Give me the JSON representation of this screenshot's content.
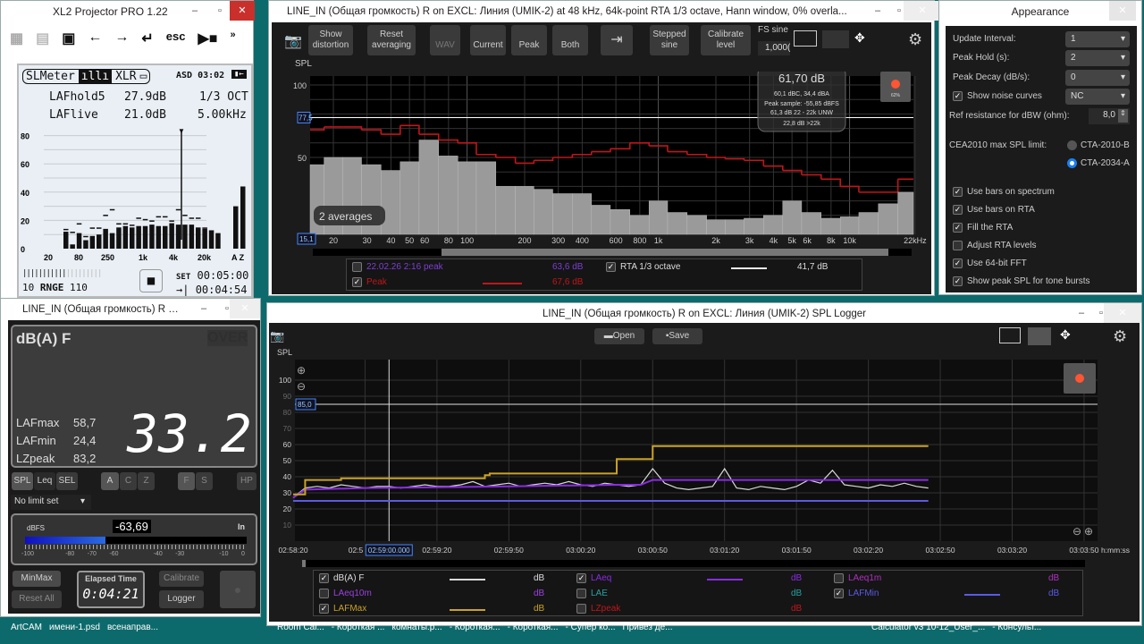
{
  "xl2": {
    "title": "XL2 Projector PRO  1.22",
    "toolbar": [
      "list-icon",
      "chart-icon",
      "sd-card-icon",
      "arrow-left-icon",
      "arrow-right-icon",
      "enter-icon",
      "esc",
      "play-stop-icon"
    ],
    "esc": "esc",
    "more": "»",
    "tabs": [
      "SLMeter",
      "XLR"
    ],
    "status": "ASD 03:02",
    "hold_label": "LAFhold5",
    "hold_value": "27.9dB",
    "band": "1/3 OCT",
    "live_label": "LAFlive",
    "live_value": "21.0dB",
    "cursor_freq": "5.00kHz",
    "y_ticks": [
      "80",
      "60",
      "40",
      "20",
      "0"
    ],
    "x_ticks": [
      "20",
      "80",
      "250",
      "1k",
      "4k",
      "20k",
      "A Z"
    ],
    "live_bars": [
      12,
      3,
      11,
      6,
      9,
      10,
      14,
      11,
      15,
      16,
      15,
      16,
      16,
      17,
      16,
      16,
      18,
      17,
      17,
      17,
      15,
      14,
      13,
      11
    ],
    "hold_marks": [
      14,
      12,
      18,
      9,
      15,
      15,
      24,
      28,
      18,
      18,
      17,
      22,
      21,
      20,
      23,
      23,
      20,
      28,
      24,
      22,
      22,
      15,
      null,
      null
    ],
    "az_bars": [
      30,
      44
    ],
    "range_lo": "10",
    "range_label": "RNGE",
    "range_hi": "110",
    "set_label": "SET",
    "set_time": "00:05:00",
    "remaining_time": "00:04:54"
  },
  "rta": {
    "title": "LINE_IN (Общая громкость) R on EXCL: Линия (UMIK-2) at 48 kHz, 64k-point RTA 1/3 octave, Hann window, 0% overla...",
    "buttons": {
      "show_distortion": "Show distortion",
      "reset_averaging": "Reset averaging",
      "wav": "WAV",
      "current": "Current",
      "peak": "Peak",
      "both": "Both",
      "stepped_sine": "Stepped sine",
      "calibrate_level": "Calibrate level"
    },
    "fs_sine_label": "FS sine",
    "fs_sine_value": "1,000(",
    "y_label": "SPL",
    "cursor_level": "77,5",
    "cursor_freq": "15,1",
    "averages": "2 averages",
    "readout": {
      "main": "61,70 dB",
      "l1": "60,1 dBC, 34,4 dBA",
      "l2": "Peak sample: -55,85 dBFS",
      "l3": "61,3 dB 22 - 22k UNW",
      "l4": "22,8 dB >22k"
    },
    "rec_label": "62%",
    "legend": [
      {
        "checked": false,
        "name": "22.02.26 2:16 peak",
        "value": "63,6 dB",
        "color": "#7b3fd1"
      },
      {
        "checked": true,
        "name": "Peak",
        "value": "67,6 dB",
        "color": "#c0161a"
      },
      {
        "checked": true,
        "name": "RTA 1/3 octave",
        "value": "41,7 dB",
        "color": "#e8e8e8"
      }
    ]
  },
  "chart_data": [
    {
      "type": "bar",
      "title": "",
      "ylabel": "SPL",
      "xlabel": "",
      "x_scale": "log",
      "ylim": [
        0,
        105
      ],
      "xlim": [
        15.1,
        22000
      ],
      "y_ticks": [
        100,
        50
      ],
      "x_tick_labels": [
        "20",
        "30",
        "40",
        "50",
        "60",
        "80",
        "100",
        "200",
        "300",
        "400",
        "600",
        "800",
        "1k",
        "2k",
        "3k",
        "4k",
        "5k",
        "6k",
        "8k",
        "10k",
        "22kHz"
      ],
      "x_tick_values": [
        20,
        30,
        40,
        50,
        60,
        80,
        100,
        200,
        300,
        400,
        600,
        800,
        1000,
        2000,
        3000,
        4000,
        5000,
        6000,
        8000,
        10000,
        22000
      ],
      "categories": [
        16,
        20,
        25,
        31.5,
        40,
        50,
        63,
        80,
        100,
        125,
        160,
        200,
        250,
        315,
        400,
        500,
        630,
        800,
        1000,
        1250,
        1600,
        2000,
        2500,
        3150,
        4000,
        5000,
        6300,
        8000,
        10000,
        12500,
        16000,
        20000
      ],
      "series": [
        {
          "name": "RTA 1/3 octave",
          "color": "#9a9a9a",
          "values": [
            45,
            50,
            50,
            45,
            41,
            47,
            62,
            51,
            47,
            47,
            30,
            30,
            28,
            25,
            25,
            17,
            14,
            10,
            20,
            12,
            10,
            7,
            7,
            8,
            10,
            20,
            12,
            8,
            9,
            12,
            18,
            26
          ]
        },
        {
          "name": "Peak",
          "color": "#c0161a",
          "values": [
            69,
            71,
            71,
            69,
            66,
            72,
            66,
            62,
            60,
            52,
            50,
            46,
            48,
            50,
            52,
            54,
            56,
            60,
            58,
            54,
            52,
            50,
            49,
            48,
            44,
            41,
            38,
            35,
            30,
            26,
            26,
            35
          ]
        }
      ],
      "reference_line": 77.5
    },
    {
      "type": "line",
      "title": "",
      "ylabel": "SPL",
      "xlabel": "h:mm:ss",
      "ylim": [
        0,
        112
      ],
      "xlim": [
        "02:58:20",
        "03:03:55"
      ],
      "y_ticks": [
        100,
        90,
        85,
        80,
        70,
        60,
        50,
        40,
        30,
        20,
        10
      ],
      "x_tick_labels": [
        "02:58:20",
        "02:5",
        "02:59:20",
        "02:59:50",
        "03:00:20",
        "03:00:50",
        "03:01:20",
        "03:01:50",
        "03:02:20",
        "03:02:50",
        "03:03:20",
        "03:03:50"
      ],
      "cursor_time": "02:59:00.000",
      "reference_line": 85.0,
      "series": [
        {
          "name": "dB(A) F",
          "color": "#d8d8d8",
          "points": [
            [
              "02:58:20",
              27
            ],
            [
              "02:58:25",
              33
            ],
            [
              "02:58:30",
              34
            ],
            [
              "02:58:35",
              33
            ],
            [
              "02:58:40",
              35
            ],
            [
              "02:58:45",
              34
            ],
            [
              "02:58:50",
              33
            ],
            [
              "02:58:55",
              34
            ],
            [
              "02:59:00",
              34
            ],
            [
              "02:59:05",
              33
            ],
            [
              "02:59:10",
              34
            ],
            [
              "02:59:15",
              35
            ],
            [
              "02:59:20",
              34
            ],
            [
              "02:59:25",
              34
            ],
            [
              "02:59:30",
              35
            ],
            [
              "02:59:35",
              37
            ],
            [
              "02:59:40",
              34
            ],
            [
              "02:59:45",
              35
            ],
            [
              "02:59:50",
              36
            ],
            [
              "02:59:55",
              34
            ],
            [
              "03:00:00",
              35
            ],
            [
              "03:00:05",
              36
            ],
            [
              "03:00:10",
              35
            ],
            [
              "03:00:15",
              37
            ],
            [
              "03:00:20",
              35
            ],
            [
              "03:00:25",
              34
            ],
            [
              "03:00:30",
              36
            ],
            [
              "03:00:35",
              35
            ],
            [
              "03:00:40",
              34
            ],
            [
              "03:00:45",
              35
            ],
            [
              "03:00:50",
              45
            ],
            [
              "03:00:55",
              36
            ],
            [
              "03:01:00",
              33
            ],
            [
              "03:01:05",
              32
            ],
            [
              "03:01:10",
              33
            ],
            [
              "03:01:15",
              34
            ],
            [
              "03:01:20",
              45
            ],
            [
              "03:01:25",
              33
            ],
            [
              "03:01:30",
              32
            ],
            [
              "03:01:35",
              34
            ],
            [
              "03:01:40",
              33
            ],
            [
              "03:01:45",
              32
            ],
            [
              "03:01:50",
              34
            ],
            [
              "03:01:55",
              38
            ],
            [
              "03:02:00",
              36
            ],
            [
              "03:02:05",
              44
            ],
            [
              "03:02:10",
              35
            ],
            [
              "03:02:15",
              34
            ],
            [
              "03:02:20",
              33
            ],
            [
              "03:02:25",
              35
            ],
            [
              "03:02:30",
              34
            ],
            [
              "03:02:35",
              36
            ],
            [
              "03:02:40",
              34
            ],
            [
              "03:02:45",
              33
            ]
          ]
        },
        {
          "name": "LAeq",
          "color": "#8a2be2",
          "points": [
            [
              "02:58:20",
              27
            ],
            [
              "02:58:25",
              32
            ],
            [
              "02:58:50",
              33
            ],
            [
              "02:59:50",
              34
            ],
            [
              "03:00:35",
              35
            ],
            [
              "03:00:45",
              35
            ],
            [
              "03:00:50",
              38
            ],
            [
              "03:02:45",
              38
            ]
          ]
        },
        {
          "name": "LAFMax",
          "color": "#c9a227",
          "steps": [
            [
              "02:58:20",
              29
            ],
            [
              "02:58:25",
              38
            ],
            [
              "02:58:40",
              39
            ],
            [
              "02:59:40",
              41
            ],
            [
              "02:59:42",
              42
            ],
            [
              "03:00:35",
              51
            ],
            [
              "03:00:50",
              59
            ],
            [
              "03:02:45",
              59
            ]
          ]
        },
        {
          "name": "LAFMin",
          "color": "#5a5ae6",
          "steps": [
            [
              "02:58:20",
              25
            ],
            [
              "03:02:45",
              25
            ]
          ]
        }
      ]
    }
  ],
  "appearance": {
    "title": "Appearance",
    "update_interval_label": "Update Interval:",
    "update_interval": "1",
    "peak_hold_label": "Peak Hold (s):",
    "peak_hold": "2",
    "peak_decay_label": "Peak Decay (dB/s):",
    "peak_decay": "0",
    "noise_label": "Show noise curves",
    "noise_value": "NC",
    "ref_label": "Ref resistance for dBW (ohm):",
    "ref_value": "8,0",
    "cea_label": "CEA2010 max SPL limit:",
    "radio1": "CTA-2010-B",
    "radio2": "CTA-2034-A",
    "checks": [
      {
        "label": "Use bars on spectrum",
        "checked": true
      },
      {
        "label": "Use bars on RTA",
        "checked": true
      },
      {
        "label": "Fill the RTA",
        "checked": true
      },
      {
        "label": "Adjust RTA levels",
        "checked": false
      },
      {
        "label": "Use 64-bit FFT",
        "checked": true
      },
      {
        "label": "Show peak SPL for tone bursts",
        "checked": true
      }
    ]
  },
  "meter": {
    "title": "LINE_IN (Общая громкость) R on...",
    "weighting": "dB(A) F",
    "over": "OVER",
    "stats": [
      [
        "LAFmax",
        "58,7"
      ],
      [
        "LAFmin",
        "24,4"
      ],
      [
        "LZpeak",
        "83,2"
      ]
    ],
    "value": "33.2",
    "modes": [
      "SPL",
      "Leq",
      "SEL"
    ],
    "weights": [
      "A",
      "C",
      "Z"
    ],
    "times": [
      "F",
      "S"
    ],
    "hp": "HP",
    "limit": "No limit set",
    "dbfs_label": "dBFS",
    "dbfs_value": "-63,69",
    "input": "In",
    "dbfs_level": -63.69,
    "scale": [
      "-100",
      "-80",
      "-70",
      "-60",
      "-40",
      "-30",
      "-10",
      "0"
    ],
    "minmax": "MinMax",
    "reset": "Reset All",
    "elapsed_label": "Elapsed Time",
    "elapsed": "0:04:21",
    "calibrate": "Calibrate",
    "logger": "Logger"
  },
  "logger": {
    "title": "LINE_IN (Общая громкость) R on EXCL: Линия (UMIK-2) SPL Logger",
    "open": "Open",
    "save": "Save",
    "y_label": "SPL",
    "cursor_level": "85,0",
    "cursor_time": "02:59:00.000",
    "legend": [
      {
        "checked": true,
        "name": "dB(A) F",
        "unit": "dB",
        "color": "#d8d8d8",
        "line": true
      },
      {
        "checked": true,
        "name": "LAeq",
        "unit": "dB",
        "color": "#8a2be2",
        "line": true
      },
      {
        "checked": false,
        "name": "LAeq1m",
        "unit": "dB",
        "color": "#b030c0",
        "line": false
      },
      {
        "checked": false,
        "name": "LAeq10m",
        "unit": "dB",
        "color": "#9a40e0",
        "line": false
      },
      {
        "checked": false,
        "name": "LAE",
        "unit": "dB",
        "color": "#2aa0a0",
        "line": false
      },
      {
        "checked": true,
        "name": "LAFMin",
        "unit": "dB",
        "color": "#5a5ae6",
        "line": true
      },
      {
        "checked": true,
        "name": "LAFMax",
        "unit": "dB",
        "color": "#c9a227",
        "line": true
      },
      {
        "checked": false,
        "name": "LZpeak",
        "unit": "dB",
        "color": "#c0161a",
        "line": false
      }
    ]
  },
  "taskbar": {
    "items": [
      "ArtCAM",
      "имени-1.psd",
      "всенаправ...",
      "Room Cal...",
      "- Короткая ...",
      "комнаты.р...",
      "- Короткая...",
      "- Короткая...",
      "- Супер ко...",
      "Привез де...",
      "Calculator v3  10-12_User_...",
      "- Консульт..."
    ]
  }
}
